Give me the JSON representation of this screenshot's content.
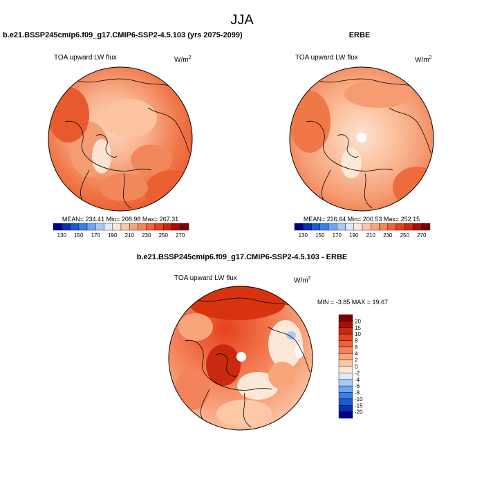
{
  "season": "JJA",
  "colors": {
    "abs_scale": [
      "#00008b",
      "#0a2fb0",
      "#1a5ad6",
      "#3d7fe8",
      "#6da5f2",
      "#a9caf7",
      "#dfeafb",
      "#fde8d8",
      "#fcc8a6",
      "#f9a57c",
      "#f5835a",
      "#ef6239",
      "#e5421f",
      "#c92a0f",
      "#a80d04",
      "#7a0000"
    ],
    "diff_scale": [
      "#00008b",
      "#0a2fb0",
      "#1a5ad6",
      "#3d7fe8",
      "#6da5f2",
      "#a9caf7",
      "#dfeafb",
      "#fde8d8",
      "#fcc8a6",
      "#f9a57c",
      "#f5835a",
      "#ef6239",
      "#e5421f",
      "#c92a0f",
      "#a80d04",
      "#7a0000"
    ]
  },
  "panels": {
    "model": {
      "header": "b.e21.BSSP245cmip6.f09_g17.CMIP6-SSP2-4.5.103 (yrs 2075-2099)",
      "variable": "TOA upward LW flux",
      "units_base": "W/m",
      "units_exp": "2",
      "stats": "MEAN= 234.41  Min= 208.98  Max= 267.31"
    },
    "obs": {
      "header": "ERBE",
      "variable": "TOA upward LW flux",
      "units_base": "W/m",
      "units_exp": "2",
      "stats": "MEAN= 226.64  Min= 200.53  Max= 252.15"
    },
    "diff": {
      "header": "b.e21.BSSP245cmip6.f09_g17.CMIP6-SSP2-4.5.103 - ERBE",
      "variable": "TOA upward LW flux",
      "units_base": "W/m",
      "units_exp": "2",
      "stats": "MIN =  -3.85 MAX =  19.67"
    }
  },
  "chart_data": [
    {
      "type": "heatmap",
      "title": "TOA upward LW flux",
      "colorbar_levels": [
        130,
        140,
        150,
        160,
        170,
        180,
        190,
        200,
        210,
        220,
        230,
        240,
        250,
        260,
        270
      ],
      "colorbar_tick_labels": [
        "130",
        "150",
        "170",
        "190",
        "210",
        "230",
        "250",
        "270"
      ],
      "mean": 234.41,
      "min": 208.98,
      "max": 267.31
    },
    {
      "type": "heatmap",
      "title": "TOA upward LW flux",
      "colorbar_levels": [
        130,
        140,
        150,
        160,
        170,
        180,
        190,
        200,
        210,
        220,
        230,
        240,
        250,
        260,
        270
      ],
      "colorbar_tick_labels": [
        "130",
        "150",
        "170",
        "190",
        "210",
        "230",
        "250",
        "270"
      ],
      "mean": 226.64,
      "min": 200.53,
      "max": 252.15
    },
    {
      "type": "heatmap",
      "title": "TOA upward LW flux",
      "colorbar_levels": [
        -20,
        -15,
        -10,
        -8,
        -6,
        -4,
        -2,
        0,
        2,
        4,
        6,
        8,
        10,
        15,
        20
      ],
      "colorbar_tick_labels": [
        "20",
        "15",
        "10",
        "8",
        "6",
        "4",
        "2",
        "0",
        "-2",
        "-4",
        "-6",
        "-8",
        "-10",
        "-15",
        "-20"
      ],
      "min": -3.85,
      "max": 19.67
    }
  ]
}
